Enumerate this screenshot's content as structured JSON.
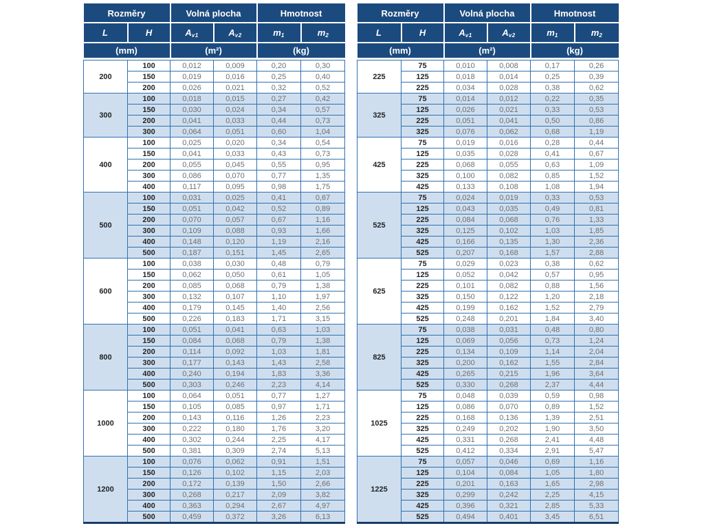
{
  "header": {
    "dimensions": "Rozměry",
    "free_area": "Volná plocha",
    "weight": "Hmotnost",
    "col_l": "L",
    "col_h": "H",
    "col_a": "A",
    "sub_v1": "v1",
    "sub_v2": "v2",
    "col_m": "m",
    "sub_1": "1",
    "sub_2": "2",
    "unit_mm": "(mm)",
    "unit_m2": "(m²)",
    "unit_kg": "(kg)"
  },
  "colors": {
    "header_bg": "#1b4a7e",
    "grid_blue": "#2f6fae",
    "stripe_blue": "#cfdeee",
    "value_gray": "#6d6e71",
    "dark_text": "#222427"
  },
  "tables": [
    {
      "side": "left",
      "groups": [
        {
          "L": "200",
          "rows": [
            [
              "100",
              "0,012",
              "0,009",
              "0,20",
              "0,30"
            ],
            [
              "150",
              "0,019",
              "0,016",
              "0,25",
              "0,40"
            ],
            [
              "200",
              "0,026",
              "0,021",
              "0,32",
              "0,52"
            ]
          ]
        },
        {
          "L": "300",
          "rows": [
            [
              "100",
              "0,018",
              "0,015",
              "0,27",
              "0,42"
            ],
            [
              "150",
              "0,030",
              "0,024",
              "0,34",
              "0,57"
            ],
            [
              "200",
              "0,041",
              "0,033",
              "0,44",
              "0,73"
            ],
            [
              "300",
              "0,064",
              "0,051",
              "0,60",
              "1,04"
            ]
          ]
        },
        {
          "L": "400",
          "rows": [
            [
              "100",
              "0,025",
              "0,020",
              "0,34",
              "0,54"
            ],
            [
              "150",
              "0,041",
              "0,033",
              "0,43",
              "0,73"
            ],
            [
              "200",
              "0,055",
              "0,045",
              "0,55",
              "0,95"
            ],
            [
              "300",
              "0,086",
              "0,070",
              "0,77",
              "1,35"
            ],
            [
              "400",
              "0,117",
              "0,095",
              "0,98",
              "1,75"
            ]
          ]
        },
        {
          "L": "500",
          "rows": [
            [
              "100",
              "0,031",
              "0,025",
              "0,41",
              "0,67"
            ],
            [
              "150",
              "0,051",
              "0,042",
              "0,52",
              "0,89"
            ],
            [
              "200",
              "0,070",
              "0,057",
              "0,67",
              "1,16"
            ],
            [
              "300",
              "0,109",
              "0,088",
              "0,93",
              "1,66"
            ],
            [
              "400",
              "0,148",
              "0,120",
              "1,19",
              "2,16"
            ],
            [
              "500",
              "0,187",
              "0,151",
              "1,45",
              "2,65"
            ]
          ]
        },
        {
          "L": "600",
          "rows": [
            [
              "100",
              "0,038",
              "0,030",
              "0,48",
              "0,79"
            ],
            [
              "150",
              "0,062",
              "0,050",
              "0,61",
              "1,05"
            ],
            [
              "200",
              "0,085",
              "0,068",
              "0,79",
              "1,38"
            ],
            [
              "300",
              "0,132",
              "0,107",
              "1,10",
              "1,97"
            ],
            [
              "400",
              "0,179",
              "0,145",
              "1,40",
              "2,56"
            ],
            [
              "500",
              "0,226",
              "0,183",
              "1,71",
              "3,15"
            ]
          ]
        },
        {
          "L": "800",
          "rows": [
            [
              "100",
              "0,051",
              "0,041",
              "0,63",
              "1,03"
            ],
            [
              "150",
              "0,084",
              "0,068",
              "0,79",
              "1,38"
            ],
            [
              "200",
              "0,114",
              "0,092",
              "1,03",
              "1,81"
            ],
            [
              "300",
              "0,177",
              "0,143",
              "1,43",
              "2,58"
            ],
            [
              "400",
              "0,240",
              "0,194",
              "1,83",
              "3,36"
            ],
            [
              "500",
              "0,303",
              "0,246",
              "2,23",
              "4,14"
            ]
          ]
        },
        {
          "L": "1000",
          "rows": [
            [
              "100",
              "0,064",
              "0,051",
              "0,77",
              "1,27"
            ],
            [
              "150",
              "0,105",
              "0,085",
              "0,97",
              "1,71"
            ],
            [
              "200",
              "0,143",
              "0,116",
              "1,26",
              "2,23"
            ],
            [
              "300",
              "0,222",
              "0,180",
              "1,76",
              "3,20"
            ],
            [
              "400",
              "0,302",
              "0,244",
              "2,25",
              "4,17"
            ],
            [
              "500",
              "0,381",
              "0,309",
              "2,74",
              "5,13"
            ]
          ]
        },
        {
          "L": "1200",
          "rows": [
            [
              "100",
              "0,076",
              "0,062",
              "0,91",
              "1,51"
            ],
            [
              "150",
              "0,126",
              "0,102",
              "1,15",
              "2,03"
            ],
            [
              "200",
              "0,172",
              "0,139",
              "1,50",
              "2,66"
            ],
            [
              "300",
              "0,268",
              "0,217",
              "2,09",
              "3,82"
            ],
            [
              "400",
              "0,363",
              "0,294",
              "2,67",
              "4,97"
            ],
            [
              "500",
              "0,459",
              "0,372",
              "3,26",
              "6,13"
            ]
          ]
        }
      ]
    },
    {
      "side": "right",
      "groups": [
        {
          "L": "225",
          "rows": [
            [
              "75",
              "0,010",
              "0,008",
              "0,17",
              "0,26"
            ],
            [
              "125",
              "0,018",
              "0,014",
              "0,25",
              "0,39"
            ],
            [
              "225",
              "0,034",
              "0,028",
              "0,38",
              "0,62"
            ]
          ]
        },
        {
          "L": "325",
          "rows": [
            [
              "75",
              "0,014",
              "0,012",
              "0,22",
              "0,35"
            ],
            [
              "125",
              "0,026",
              "0,021",
              "0,33",
              "0,53"
            ],
            [
              "225",
              "0,051",
              "0,041",
              "0,50",
              "0,86"
            ],
            [
              "325",
              "0,076",
              "0,062",
              "0,68",
              "1,19"
            ]
          ]
        },
        {
          "L": "425",
          "rows": [
            [
              "75",
              "0,019",
              "0,016",
              "0,28",
              "0,44"
            ],
            [
              "125",
              "0,035",
              "0,028",
              "0,41",
              "0,67"
            ],
            [
              "225",
              "0,068",
              "0,055",
              "0,63",
              "1,09"
            ],
            [
              "325",
              "0,100",
              "0,082",
              "0,85",
              "1,52"
            ],
            [
              "425",
              "0,133",
              "0,108",
              "1,08",
              "1,94"
            ]
          ]
        },
        {
          "L": "525",
          "rows": [
            [
              "75",
              "0,024",
              "0,019",
              "0,33",
              "0,53"
            ],
            [
              "125",
              "0,043",
              "0,035",
              "0,49",
              "0,81"
            ],
            [
              "225",
              "0,084",
              "0,068",
              "0,76",
              "1,33"
            ],
            [
              "325",
              "0,125",
              "0,102",
              "1,03",
              "1,85"
            ],
            [
              "425",
              "0,166",
              "0,135",
              "1,30",
              "2,36"
            ],
            [
              "525",
              "0,207",
              "0,168",
              "1,57",
              "2,88"
            ]
          ]
        },
        {
          "L": "625",
          "rows": [
            [
              "75",
              "0,029",
              "0,023",
              "0,38",
              "0,62"
            ],
            [
              "125",
              "0,052",
              "0,042",
              "0,57",
              "0,95"
            ],
            [
              "225",
              "0,101",
              "0,082",
              "0,88",
              "1,56"
            ],
            [
              "325",
              "0,150",
              "0,122",
              "1,20",
              "2,18"
            ],
            [
              "425",
              "0,199",
              "0,162",
              "1,52",
              "2,79"
            ],
            [
              "525",
              "0,248",
              "0,201",
              "1,84",
              "3,40"
            ]
          ]
        },
        {
          "L": "825",
          "rows": [
            [
              "75",
              "0,038",
              "0,031",
              "0,48",
              "0,80"
            ],
            [
              "125",
              "0,069",
              "0,056",
              "0,73",
              "1,24"
            ],
            [
              "225",
              "0,134",
              "0,109",
              "1,14",
              "2,04"
            ],
            [
              "325",
              "0,200",
              "0,162",
              "1,55",
              "2,84"
            ],
            [
              "425",
              "0,265",
              "0,215",
              "1,96",
              "3,64"
            ],
            [
              "525",
              "0,330",
              "0,268",
              "2,37",
              "4,44"
            ]
          ]
        },
        {
          "L": "1025",
          "rows": [
            [
              "75",
              "0,048",
              "0,039",
              "0,59",
              "0,98"
            ],
            [
              "125",
              "0,086",
              "0,070",
              "0,89",
              "1,52"
            ],
            [
              "225",
              "0,168",
              "0,136",
              "1,39",
              "2,51"
            ],
            [
              "325",
              "0,249",
              "0,202",
              "1,90",
              "3,50"
            ],
            [
              "425",
              "0,331",
              "0,268",
              "2,41",
              "4,48"
            ],
            [
              "525",
              "0,412",
              "0,334",
              "2,91",
              "5,47"
            ]
          ]
        },
        {
          "L": "1225",
          "rows": [
            [
              "75",
              "0,057",
              "0,046",
              "0,69",
              "1,16"
            ],
            [
              "125",
              "0,104",
              "0,084",
              "1,05",
              "1,80"
            ],
            [
              "225",
              "0,201",
              "0,163",
              "1,65",
              "2,98"
            ],
            [
              "325",
              "0,299",
              "0,242",
              "2,25",
              "4,15"
            ],
            [
              "425",
              "0,396",
              "0,321",
              "2,85",
              "5,33"
            ],
            [
              "525",
              "0,494",
              "0,401",
              "3,45",
              "6,51"
            ]
          ]
        }
      ]
    }
  ]
}
